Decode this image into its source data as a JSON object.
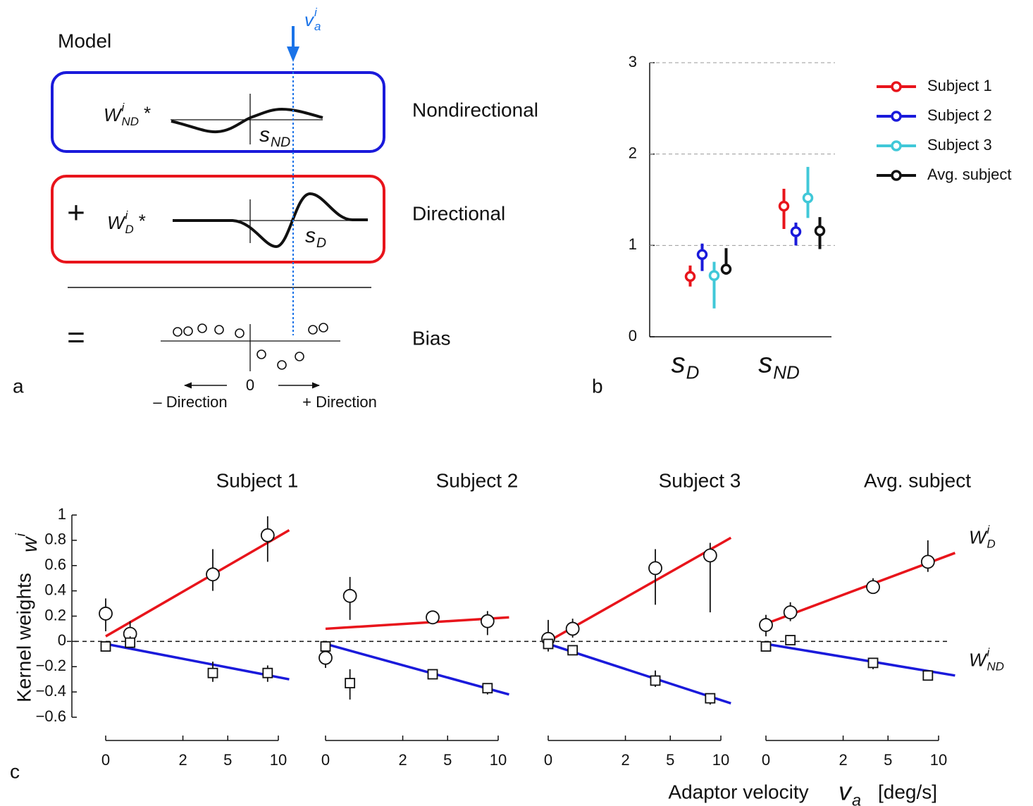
{
  "panel_labels": [
    "a",
    "b",
    "c"
  ],
  "panel_a": {
    "title": "Model",
    "velocity": {
      "base": "v",
      "sub": "a",
      "sup": "i"
    },
    "rows": [
      {
        "label": "Nondirectional",
        "weight": {
          "base": "W",
          "sub": "ND",
          "sup": "i",
          "op": "*"
        },
        "kernel": {
          "base": "s",
          "sub": "ND"
        }
      },
      {
        "label": "Directional",
        "op": "+",
        "weight": {
          "base": "W",
          "sub": "D",
          "sup": "i",
          "op": "*"
        },
        "kernel": {
          "base": "s",
          "sub": "D"
        }
      },
      {
        "label": "Bias",
        "op": "="
      }
    ],
    "axis": {
      "origin": "0",
      "left": "– Direction",
      "right": "+ Direction"
    }
  },
  "chart_data": [
    {
      "type": "errorbar",
      "categories": [
        {
          "base": "s",
          "sub": "D"
        },
        {
          "base": "s",
          "sub": "ND"
        }
      ],
      "ylim": [
        0,
        3
      ],
      "yticks": [
        0,
        1,
        2,
        3
      ],
      "grid": true,
      "legend": "right",
      "series": [
        {
          "name": "Subject 1",
          "color": "#e8141b",
          "values": [
            0.66,
            1.43
          ],
          "lower": [
            0.55,
            1.18
          ],
          "upper": [
            0.78,
            1.62
          ]
        },
        {
          "name": "Subject 2",
          "color": "#1a1adb",
          "values": [
            0.9,
            1.15
          ],
          "lower": [
            0.72,
            1.0
          ],
          "upper": [
            1.02,
            1.25
          ]
        },
        {
          "name": "Subject 3",
          "color": "#40c8d8",
          "values": [
            0.67,
            1.52
          ],
          "lower": [
            0.31,
            1.3
          ],
          "upper": [
            0.82,
            1.86
          ]
        },
        {
          "name": "Avg. subject",
          "color": "#111111",
          "values": [
            0.74,
            1.16
          ],
          "lower": [
            0.68,
            0.96
          ],
          "upper": [
            0.97,
            1.31
          ]
        }
      ]
    },
    {
      "type": "scatter-fit",
      "title": "Subject 1",
      "xscale": "sqrt",
      "xlim": [
        0,
        10
      ],
      "xticks": [
        0,
        2,
        5,
        10
      ],
      "ylim": [
        -0.6,
        1
      ],
      "zero_line": true,
      "yticks": [
        {
          "value": -0.6,
          "label": "−0.6"
        },
        {
          "value": -0.4,
          "label": "−0.4"
        },
        {
          "value": -0.2,
          "label": "−0.2"
        },
        0,
        0.2,
        0.4,
        0.6,
        0.8,
        1
      ],
      "series": [
        {
          "marker": "circle",
          "color": "#e8141b",
          "x": [
            0,
            0.2,
            3.85,
            8.8
          ],
          "values": [
            0.22,
            0.06,
            0.53,
            0.84
          ],
          "lower": [
            0.08,
            0.0,
            0.4,
            0.63
          ],
          "upper": [
            0.34,
            0.16,
            0.73,
            0.99
          ],
          "fit_x": [
            0,
            11.3
          ],
          "fit": [
            0.04,
            0.88
          ]
        },
        {
          "marker": "square",
          "color": "#1a1adb",
          "x": [
            0,
            0.2,
            3.85,
            8.8
          ],
          "values": [
            -0.04,
            -0.01,
            -0.25,
            -0.25
          ],
          "lower": [
            -0.06,
            -0.04,
            -0.32,
            -0.32
          ],
          "upper": [
            -0.02,
            0.04,
            -0.16,
            -0.19
          ],
          "fit_x": [
            0,
            11.3
          ],
          "fit": [
            -0.02,
            -0.3
          ]
        }
      ]
    },
    {
      "type": "scatter-fit",
      "title": "Subject 2",
      "xscale": "sqrt",
      "xlim": [
        0,
        10
      ],
      "xticks": [
        0,
        2,
        5,
        10
      ],
      "ylim": [
        -0.6,
        1
      ],
      "series": [
        {
          "marker": "circle",
          "color": "#e8141b",
          "x": [
            0,
            0.2,
            3.85,
            8.8
          ],
          "values": [
            -0.13,
            0.36,
            0.19,
            0.16
          ],
          "lower": [
            -0.21,
            0.17,
            0.14,
            0.05
          ],
          "upper": [
            -0.06,
            0.51,
            0.24,
            0.24
          ],
          "fit_x": [
            0,
            11.3
          ],
          "fit": [
            0.1,
            0.19
          ]
        },
        {
          "marker": "square",
          "color": "#1a1adb",
          "x": [
            0,
            0.2,
            3.85,
            8.8
          ],
          "values": [
            -0.04,
            -0.33,
            -0.26,
            -0.37
          ],
          "lower": [
            -0.07,
            -0.46,
            -0.28,
            -0.42
          ],
          "upper": [
            -0.02,
            -0.22,
            -0.24,
            -0.33
          ],
          "fit_x": [
            0,
            11.3
          ],
          "fit": [
            -0.02,
            -0.42
          ]
        }
      ]
    },
    {
      "type": "scatter-fit",
      "title": "Subject 3",
      "xscale": "sqrt",
      "xlim": [
        0,
        10
      ],
      "xticks": [
        0,
        2,
        5,
        10
      ],
      "ylim": [
        -0.6,
        1
      ],
      "series": [
        {
          "marker": "circle",
          "color": "#e8141b",
          "x": [
            0,
            0.2,
            3.85,
            8.8
          ],
          "values": [
            0.02,
            0.1,
            0.58,
            0.68
          ],
          "lower": [
            -0.08,
            0.03,
            0.29,
            0.23
          ],
          "upper": [
            0.17,
            0.18,
            0.73,
            0.78
          ],
          "fit_x": [
            0,
            11.2
          ],
          "fit": [
            0.0,
            0.82
          ]
        },
        {
          "marker": "square",
          "color": "#1a1adb",
          "x": [
            0,
            0.2,
            3.85,
            8.8
          ],
          "values": [
            -0.02,
            -0.07,
            -0.31,
            -0.45
          ],
          "lower": [
            -0.05,
            -0.1,
            -0.36,
            -0.5
          ],
          "upper": [
            0.0,
            -0.04,
            -0.23,
            -0.42
          ],
          "fit_x": [
            0,
            11.2
          ],
          "fit": [
            -0.02,
            -0.49
          ]
        }
      ]
    },
    {
      "type": "scatter-fit",
      "title": "Avg. subject",
      "xscale": "sqrt",
      "xlim": [
        0,
        10
      ],
      "xticks": [
        0,
        2,
        5,
        10
      ],
      "ylim": [
        -0.6,
        1
      ],
      "series": [
        {
          "label": {
            "base": "W",
            "sub": "D",
            "sup": "i"
          },
          "marker": "circle",
          "color": "#e8141b",
          "x": [
            0,
            0.2,
            3.85,
            8.8
          ],
          "values": [
            0.13,
            0.23,
            0.43,
            0.63
          ],
          "lower": [
            0.04,
            0.16,
            0.39,
            0.55
          ],
          "upper": [
            0.21,
            0.31,
            0.5,
            0.8
          ],
          "fit_x": [
            0,
            12
          ],
          "fit": [
            0.14,
            0.7
          ]
        },
        {
          "label": {
            "base": "W",
            "sub": "ND",
            "sup": "i"
          },
          "marker": "square",
          "color": "#1a1adb",
          "x": [
            0,
            0.2,
            3.85,
            8.8
          ],
          "values": [
            -0.04,
            0.01,
            -0.17,
            -0.27
          ],
          "lower": [
            -0.06,
            -0.01,
            -0.22,
            -0.31
          ],
          "upper": [
            -0.02,
            0.04,
            -0.14,
            -0.24
          ],
          "fit_x": [
            0,
            12
          ],
          "fit": [
            -0.02,
            -0.27
          ]
        }
      ]
    }
  ],
  "panel_c": {
    "ylabel": "Kernel weights",
    "yvar": {
      "base": "w",
      "sup": "i"
    },
    "xlabel": "Adaptor velocity",
    "xvar": {
      "base": "v",
      "sub": "a"
    },
    "xunit": "[deg/s]"
  }
}
